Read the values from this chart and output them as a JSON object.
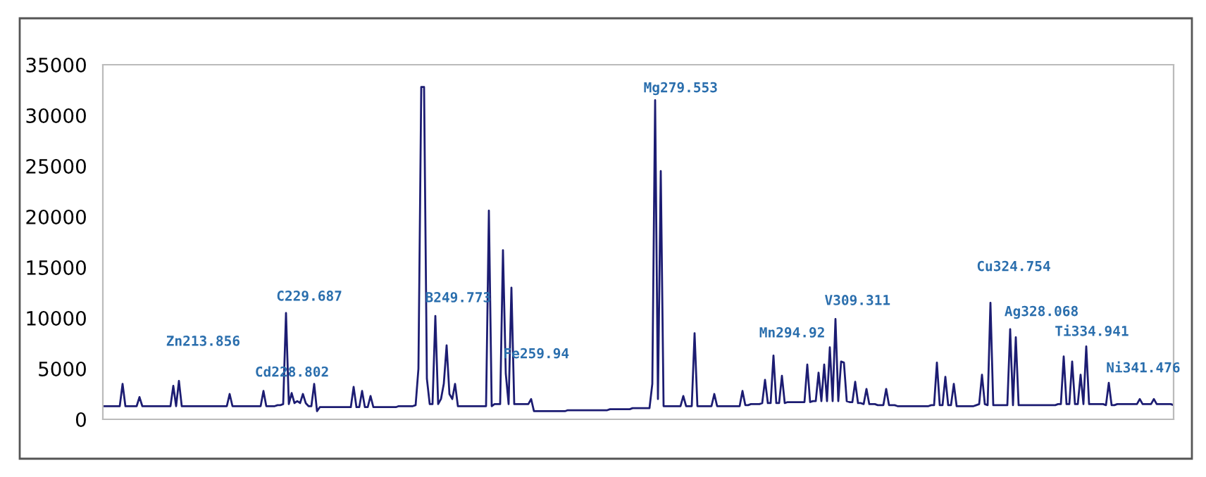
{
  "chart_data": {
    "type": "line",
    "color": "#1c1c72",
    "tick_labels": "y",
    "grid": false,
    "legend": false,
    "marker": "none",
    "line_style": "solid",
    "ylim": [
      0,
      35000
    ],
    "yticks": [
      0,
      5000,
      10000,
      15000,
      20000,
      25000,
      30000,
      35000
    ],
    "categories": [
      null,
      null,
      null,
      null,
      null,
      null,
      null,
      null,
      null,
      null,
      null,
      null,
      null,
      null,
      null,
      null,
      null,
      null,
      null,
      null,
      null,
      null,
      null,
      null,
      null,
      null,
      null,
      null,
      null,
      null,
      null,
      null,
      null,
      null,
      null,
      null,
      null,
      null,
      null,
      null,
      null,
      null,
      null,
      null,
      null,
      null,
      null,
      null,
      null,
      null,
      null,
      null,
      null,
      null,
      null,
      null,
      null,
      null,
      null,
      null,
      null,
      null,
      null,
      null,
      null,
      null,
      null,
      null,
      null,
      null,
      null,
      null,
      null,
      null,
      null,
      null,
      null,
      null,
      null,
      null,
      null,
      null,
      null,
      null,
      null,
      null,
      null,
      null,
      null,
      null,
      null,
      null,
      null,
      null,
      null,
      null,
      null,
      null,
      null,
      null,
      null,
      null,
      null,
      null,
      null,
      null,
      null,
      null,
      null,
      null,
      null,
      null,
      null,
      null,
      null,
      null,
      null,
      null,
      null,
      null,
      null,
      null,
      null,
      null,
      null,
      null,
      null,
      null,
      null,
      null,
      null,
      null,
      null,
      null,
      null,
      null,
      null,
      null,
      null,
      null,
      null,
      null,
      null,
      null,
      null,
      null,
      null,
      null,
      null,
      null,
      null,
      null,
      null,
      null,
      null,
      null,
      null,
      null,
      null,
      null,
      null,
      null,
      null,
      null,
      null,
      null,
      null,
      null,
      null,
      null,
      null,
      null,
      null,
      null,
      null,
      null,
      null,
      null,
      null,
      null,
      null,
      null,
      null,
      null,
      null,
      null,
      null,
      null,
      null,
      null,
      null,
      null,
      null,
      null,
      null,
      null,
      null,
      null,
      null,
      null,
      null,
      null,
      null,
      null,
      null,
      null,
      null,
      null,
      null,
      null,
      null,
      null,
      null,
      null,
      null,
      null,
      null,
      null,
      null,
      null,
      null,
      null,
      null,
      null,
      null,
      null,
      null,
      null,
      null,
      null,
      null,
      null,
      null,
      null,
      null,
      null,
      null,
      null,
      null,
      null,
      null,
      null,
      null,
      null,
      null,
      null,
      null,
      null,
      null,
      null,
      null,
      null,
      null,
      null,
      null,
      null,
      null,
      null,
      null,
      null,
      null,
      null,
      null,
      null,
      null,
      null,
      null,
      null,
      null,
      null,
      null,
      null,
      null,
      null,
      null,
      null,
      null,
      null,
      null,
      null,
      null,
      null,
      null,
      null,
      null,
      null,
      null,
      null,
      null,
      null,
      null,
      null,
      null,
      null,
      null,
      null,
      null,
      null,
      null,
      null,
      null,
      null,
      null,
      null,
      null,
      null,
      null,
      null,
      null,
      null,
      null,
      null,
      null,
      null,
      null,
      null,
      null,
      null,
      null,
      null,
      null,
      null,
      null,
      null,
      null,
      null,
      null,
      null,
      null,
      null,
      null,
      null,
      null,
      null,
      null,
      null,
      null,
      null,
      null,
      null,
      null,
      null,
      null,
      null,
      null,
      null,
      null,
      null,
      null,
      null,
      null,
      null,
      null,
      null,
      null,
      null,
      null,
      null,
      null,
      null,
      null,
      null,
      null,
      null,
      null,
      null,
      null,
      null,
      null,
      null,
      null,
      null,
      null,
      null,
      null,
      null,
      null,
      null,
      null,
      null,
      null
    ],
    "values": [
      1300,
      1300,
      1300,
      1300,
      1300,
      1300,
      1300,
      3500,
      1300,
      1300,
      1300,
      1300,
      1300,
      2200,
      1300,
      1300,
      1300,
      1300,
      1300,
      1300,
      1300,
      1300,
      1300,
      1300,
      1300,
      3300,
      1300,
      3800,
      1300,
      1300,
      1300,
      1300,
      1300,
      1300,
      1300,
      1300,
      1300,
      1300,
      1300,
      1300,
      1300,
      1300,
      1300,
      1300,
      1300,
      2500,
      1300,
      1300,
      1300,
      1300,
      1300,
      1300,
      1300,
      1300,
      1300,
      1300,
      1300,
      2800,
      1300,
      1300,
      1300,
      1300,
      1400,
      1400,
      1500,
      10500,
      1500,
      2600,
      1600,
      1800,
      1600,
      2500,
      1600,
      1300,
      1300,
      3500,
      800,
      1200,
      1200,
      1200,
      1200,
      1200,
      1200,
      1200,
      1200,
      1200,
      1200,
      1200,
      1200,
      3200,
      1200,
      1200,
      2800,
      1200,
      1200,
      2300,
      1200,
      1200,
      1200,
      1200,
      1200,
      1200,
      1200,
      1200,
      1200,
      1300,
      1300,
      1300,
      1300,
      1300,
      1300,
      1400,
      5000,
      32800,
      32800,
      4000,
      1500,
      1500,
      10200,
      1500,
      2000,
      3500,
      7300,
      2500,
      2000,
      3500,
      1300,
      1300,
      1300,
      1300,
      1300,
      1300,
      1300,
      1300,
      1300,
      1300,
      1300,
      20600,
      1300,
      1500,
      1500,
      1500,
      16700,
      4500,
      1500,
      13000,
      1500,
      1500,
      1500,
      1500,
      1500,
      1500,
      2000,
      800,
      800,
      800,
      800,
      800,
      800,
      800,
      800,
      800,
      800,
      800,
      800,
      900,
      900,
      900,
      900,
      900,
      900,
      900,
      900,
      900,
      900,
      900,
      900,
      900,
      900,
      900,
      1000,
      1000,
      1000,
      1000,
      1000,
      1000,
      1000,
      1000,
      1100,
      1100,
      1100,
      1100,
      1100,
      1100,
      1100,
      3500,
      31500,
      2000,
      24500,
      1300,
      1300,
      1300,
      1300,
      1300,
      1300,
      1300,
      2300,
      1300,
      1300,
      1300,
      8500,
      1300,
      1300,
      1300,
      1300,
      1300,
      1300,
      2500,
      1300,
      1300,
      1300,
      1300,
      1300,
      1300,
      1300,
      1300,
      1300,
      2800,
      1400,
      1400,
      1500,
      1500,
      1500,
      1500,
      1600,
      3900,
      1600,
      1600,
      6300,
      1600,
      1600,
      4300,
      1600,
      1700,
      1700,
      1700,
      1700,
      1700,
      1700,
      1700,
      5400,
      1700,
      1800,
      1800,
      4600,
      1800,
      5400,
      1800,
      7100,
      1800,
      9900,
      1800,
      5700,
      5600,
      1800,
      1700,
      1700,
      3700,
      1600,
      1600,
      1500,
      3000,
      1500,
      1500,
      1500,
      1400,
      1400,
      1400,
      3000,
      1400,
      1400,
      1400,
      1300,
      1300,
      1300,
      1300,
      1300,
      1300,
      1300,
      1300,
      1300,
      1300,
      1300,
      1300,
      1400,
      1400,
      5600,
      1400,
      1400,
      4200,
      1400,
      1400,
      3500,
      1300,
      1300,
      1300,
      1300,
      1300,
      1300,
      1300,
      1400,
      1500,
      4400,
      1500,
      1400,
      11500,
      1400,
      1400,
      1400,
      1400,
      1400,
      1400,
      8900,
      1400,
      8100,
      1400,
      1400,
      1400,
      1400,
      1400,
      1400,
      1400,
      1400,
      1400,
      1400,
      1400,
      1400,
      1400,
      1400,
      1500,
      1500,
      6200,
      1500,
      1500,
      5700,
      1500,
      1500,
      4400,
      1500,
      7200,
      1500,
      1500,
      1500,
      1500,
      1500,
      1500,
      1400,
      3600,
      1400,
      1400,
      1500,
      1500,
      1500,
      1500,
      1500,
      1500,
      1500,
      1500,
      2000,
      1500,
      1500,
      1500,
      1500,
      2000,
      1500,
      1500,
      1500,
      1500,
      1500,
      1500,
      1400
    ],
    "annotations": [
      "Zn213.856",
      "Cd228.802",
      "C229.687",
      "B249.773",
      "Fe259.94",
      "Mg279.553",
      "Mn294.92",
      "V309.311",
      "Cu324.754",
      "Ag328.068",
      "Ti334.941",
      "Ni341.476"
    ]
  }
}
